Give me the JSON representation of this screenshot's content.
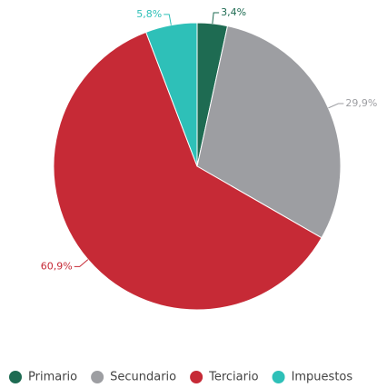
{
  "chart_data": {
    "type": "pie",
    "categories": [
      "Primario",
      "Secundario",
      "Terciario",
      "Impuestos"
    ],
    "values": [
      3.4,
      29.9,
      60.9,
      5.8
    ],
    "value_labels": [
      "3,4%",
      "29,9%",
      "60,9%",
      "5,8%"
    ],
    "colors": [
      "#1e6b52",
      "#9d9ea2",
      "#c62a36",
      "#2ec0b8"
    ],
    "legend": "bottom"
  }
}
